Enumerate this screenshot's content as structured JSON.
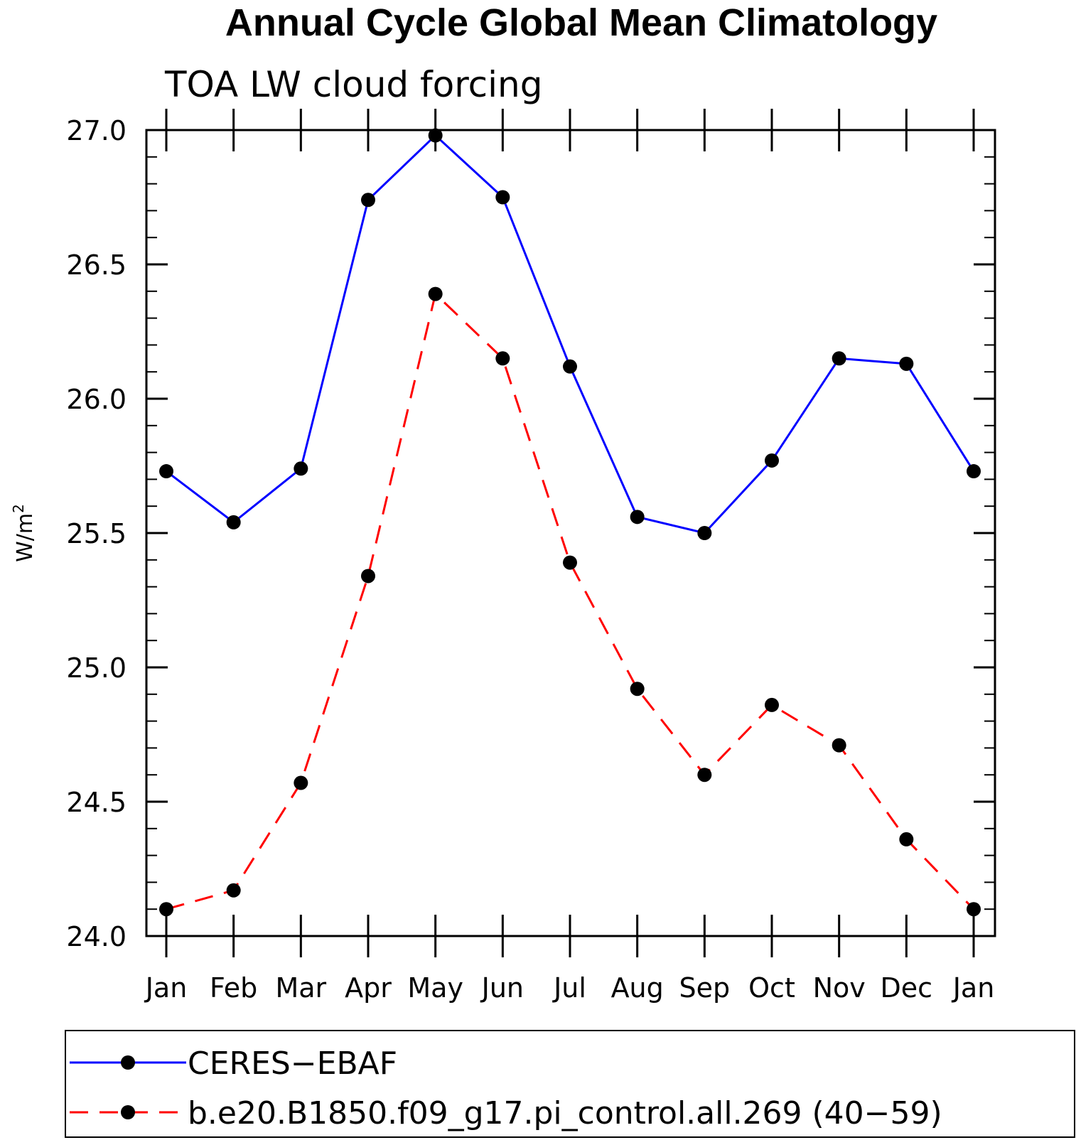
{
  "chart_data": {
    "type": "line",
    "title": "Annual Cycle Global Mean Climatology",
    "subtitle": "TOA LW cloud forcing",
    "xlabel": "",
    "ylabel": "W/m",
    "ylabel_sup": "2",
    "categories": [
      "Jan",
      "Feb",
      "Mar",
      "Apr",
      "May",
      "Jun",
      "Jul",
      "Aug",
      "Sep",
      "Oct",
      "Nov",
      "Dec",
      "Jan"
    ],
    "ylim": [
      24.0,
      27.0
    ],
    "yticks": [
      "24.0",
      "24.5",
      "25.0",
      "25.5",
      "26.0",
      "26.5",
      "27.0"
    ],
    "series": [
      {
        "name": "CERES−EBAF",
        "color": "#0000ff",
        "style": "solid",
        "marker": "circle",
        "values": [
          25.73,
          25.54,
          25.74,
          26.74,
          26.98,
          26.75,
          26.12,
          25.56,
          25.5,
          25.77,
          26.15,
          26.13,
          25.73
        ]
      },
      {
        "name": "b.e20.B1850.f09_g17.pi_control.all.269 (40−59)",
        "color": "#ff0000",
        "style": "dashed",
        "marker": "circle",
        "values": [
          24.1,
          24.17,
          24.57,
          25.34,
          26.39,
          26.15,
          25.39,
          24.92,
          24.6,
          24.86,
          24.71,
          24.36,
          24.1
        ]
      }
    ],
    "grid": false,
    "legend_position": "bottom"
  }
}
